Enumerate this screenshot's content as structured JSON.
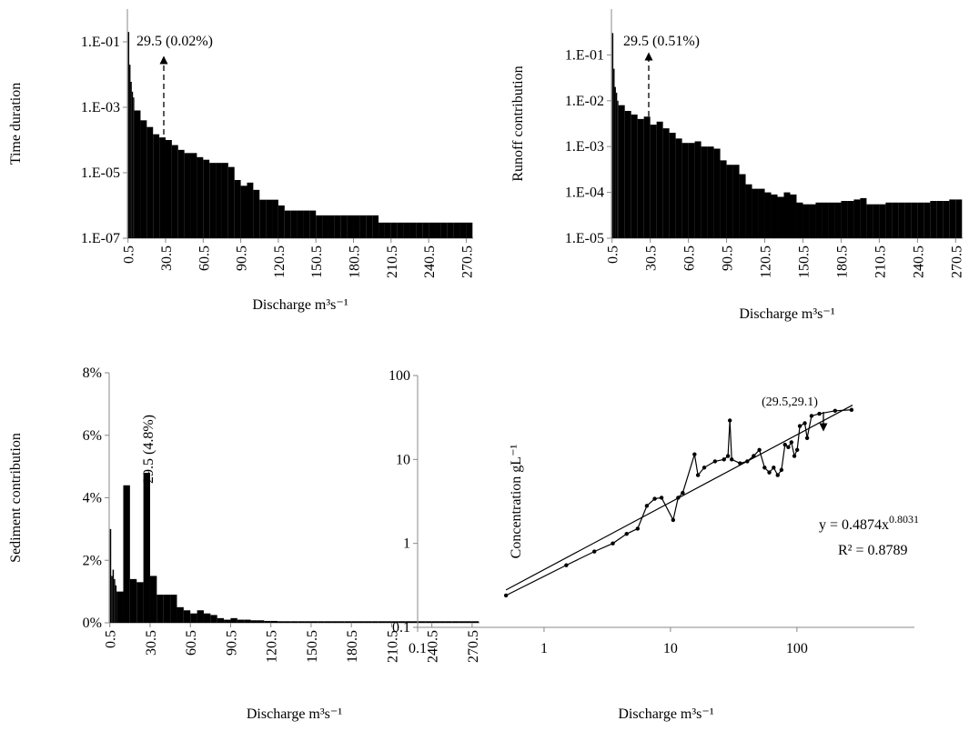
{
  "chart_data": [
    {
      "type": "histogram",
      "y_label": "Time duration",
      "x_label": "Discharge m³s⁻¹",
      "annotation": "29.5 (0.02%)",
      "log_y": true,
      "color": "#000000",
      "bins": [
        0.5,
        1.5,
        2.5,
        3.5,
        4.5,
        5.5,
        10.5,
        15.5,
        20.5,
        25.5,
        30.5,
        35.5,
        40.5,
        45.5,
        50.5,
        55.5,
        60.5,
        65.5,
        70.5,
        75.5,
        80.5,
        85.5,
        90.5,
        95.5,
        100.5,
        105.5,
        110.5,
        115.5,
        120.5,
        125.5,
        130.5,
        135.5,
        140.5,
        145.5,
        150.5,
        155.5,
        160.5,
        165.5,
        170.5,
        175.5,
        180.5,
        185.5,
        190.5,
        195.5,
        200.5,
        205.5,
        210.5,
        215.5,
        220.5,
        225.5,
        230.5,
        235.5,
        240.5,
        245.5,
        250.5,
        255.5,
        260.5,
        265.5,
        270.5,
        275.5
      ],
      "values": [
        0.2,
        0.02,
        0.006,
        0.003,
        0.002,
        0.0008,
        0.0004,
        0.00025,
        0.00015,
        0.00012,
        0.0001,
        7e-05,
        5e-05,
        4e-05,
        4e-05,
        3e-05,
        2.5e-05,
        2e-05,
        2e-05,
        2e-05,
        1.5e-05,
        6e-06,
        4e-06,
        5e-06,
        3e-06,
        1.5e-06,
        1.5e-06,
        1.5e-06,
        1e-06,
        7e-07,
        7e-07,
        7e-07,
        7e-07,
        7e-07,
        5e-07,
        5e-07,
        5e-07,
        5e-07,
        5e-07,
        5e-07,
        5e-07,
        5e-07,
        5e-07,
        5e-07,
        3e-07,
        3e-07,
        3e-07,
        3e-07,
        3e-07,
        3e-07,
        3e-07,
        3e-07,
        3e-07,
        3e-07,
        3e-07,
        3e-07,
        3e-07,
        3e-07,
        3e-07
      ],
      "xlim": [
        0,
        276
      ],
      "xticks": [
        0.5,
        30.5,
        60.5,
        90.5,
        120.5,
        150.5,
        180.5,
        210.5,
        240.5,
        270.5
      ],
      "ylim": [
        1e-07,
        1
      ],
      "yticks": [
        {
          "value": 1e-07,
          "label": "1.E-07"
        },
        {
          "value": 1e-05,
          "label": "1.E-05"
        },
        {
          "value": 0.001,
          "label": "1.E-03"
        },
        {
          "value": 0.1,
          "label": "1.E-01"
        }
      ]
    },
    {
      "type": "histogram",
      "y_label": "Runoff contribution",
      "x_label": "Discharge m³s⁻¹",
      "annotation": "29.5 (0.51%)",
      "log_y": true,
      "color": "#000000",
      "bins": [
        0.5,
        1.5,
        2.5,
        3.5,
        4.5,
        5.5,
        10.5,
        15.5,
        20.5,
        25.5,
        30.5,
        35.5,
        40.5,
        45.5,
        50.5,
        55.5,
        60.5,
        65.5,
        70.5,
        75.5,
        80.5,
        85.5,
        90.5,
        95.5,
        100.5,
        105.5,
        110.5,
        115.5,
        120.5,
        125.5,
        130.5,
        135.5,
        140.5,
        145.5,
        150.5,
        155.5,
        160.5,
        165.5,
        170.5,
        175.5,
        180.5,
        185.5,
        190.5,
        195.5,
        200.5,
        205.5,
        210.5,
        215.5,
        220.5,
        225.5,
        230.5,
        235.5,
        240.5,
        245.5,
        250.5,
        255.5,
        260.5,
        265.5,
        270.5,
        275.5
      ],
      "values": [
        0.3,
        0.05,
        0.02,
        0.015,
        0.01,
        0.008,
        0.006,
        0.005,
        0.004,
        0.0045,
        0.003,
        0.0035,
        0.0025,
        0.002,
        0.0015,
        0.0012,
        0.0012,
        0.0013,
        0.001,
        0.001,
        0.0009,
        0.0005,
        0.0004,
        0.0004,
        0.00025,
        0.00015,
        0.00012,
        0.00012,
        0.0001,
        9e-05,
        8e-05,
        0.0001,
        9e-05,
        6e-05,
        5.5e-05,
        5.5e-05,
        6e-05,
        6e-05,
        6e-05,
        6e-05,
        6.5e-05,
        6.5e-05,
        7e-05,
        7.5e-05,
        5.5e-05,
        5.5e-05,
        5.5e-05,
        6e-05,
        6e-05,
        6e-05,
        6e-05,
        6e-05,
        6e-05,
        6e-05,
        6.5e-05,
        6.5e-05,
        6.5e-05,
        7e-05,
        7e-05
      ],
      "xlim": [
        0,
        276
      ],
      "xticks": [
        0.5,
        30.5,
        60.5,
        90.5,
        120.5,
        150.5,
        180.5,
        210.5,
        240.5,
        270.5
      ],
      "ylim": [
        1e-05,
        1
      ],
      "yticks": [
        {
          "value": 1e-05,
          "label": "1.E-05"
        },
        {
          "value": 0.0001,
          "label": "1.E-04"
        },
        {
          "value": 0.001,
          "label": "1.E-03"
        },
        {
          "value": 0.01,
          "label": "1.E-02"
        },
        {
          "value": 0.1,
          "label": "1.E-01"
        }
      ]
    },
    {
      "type": "histogram",
      "y_label": "Sediment contribution",
      "x_label": "Discharge m³s⁻¹",
      "annotation": "29.5 (4.8%)",
      "log_y": false,
      "color": "#000000",
      "bins": [
        0.5,
        1.5,
        2.5,
        3.5,
        4.5,
        5.5,
        10.5,
        15.5,
        20.5,
        25.5,
        30.5,
        35.5,
        40.5,
        45.5,
        50.5,
        55.5,
        60.5,
        65.5,
        70.5,
        75.5,
        80.5,
        85.5,
        90.5,
        95.5,
        100.5,
        105.5,
        110.5,
        115.5,
        120.5,
        125.5,
        130.5,
        135.5,
        140.5,
        145.5,
        150.5,
        155.5,
        160.5,
        165.5,
        170.5,
        175.5,
        180.5,
        185.5,
        190.5,
        195.5,
        200.5,
        205.5,
        210.5,
        215.5,
        220.5,
        225.5,
        230.5,
        235.5,
        240.5,
        245.5,
        250.5,
        255.5,
        260.5,
        265.5,
        270.5,
        275.5
      ],
      "values": [
        3.0,
        1.5,
        1.7,
        1.4,
        1.2,
        1.0,
        4.4,
        1.4,
        1.3,
        4.8,
        1.5,
        0.9,
        0.9,
        0.9,
        0.5,
        0.4,
        0.3,
        0.4,
        0.3,
        0.25,
        0.15,
        0.1,
        0.15,
        0.1,
        0.1,
        0.08,
        0.08,
        0.06,
        0.06,
        0.05,
        0.05,
        0.05,
        0.05,
        0.05,
        0.05,
        0.05,
        0.05,
        0.05,
        0.05,
        0.05,
        0.05,
        0.05,
        0.05,
        0.05,
        0.05,
        0.05,
        0.05,
        0.05,
        0.05,
        0.05,
        0.05,
        0.05,
        0.05,
        0.05,
        0.05,
        0.05,
        0.05,
        0.05,
        0.05
      ],
      "xlim": [
        0,
        276
      ],
      "xticks": [
        0.5,
        30.5,
        60.5,
        90.5,
        120.5,
        150.5,
        180.5,
        210.5,
        240.5,
        270.5
      ],
      "ylim": [
        0,
        8
      ],
      "yticks": [
        {
          "value": 0,
          "label": "0%"
        },
        {
          "value": 2,
          "label": "2%"
        },
        {
          "value": 4,
          "label": "4%"
        },
        {
          "value": 6,
          "label": "6%"
        },
        {
          "value": 8,
          "label": "8%"
        }
      ]
    },
    {
      "type": "scatter",
      "y_label": "Concentration gL⁻¹",
      "x_label": "Discharge m³s⁻¹",
      "annotation": "(29.5,29.1)",
      "equation": {
        "base": "y = 0.4874x",
        "exponent": "0.8031"
      },
      "r_squared": "R² = 0.8789",
      "log_x": true,
      "log_y": true,
      "xlim": [
        0.1,
        850
      ],
      "xticks": [
        0.1,
        1,
        10,
        100
      ],
      "ylim": [
        0.1,
        100
      ],
      "yticks": [
        0.1,
        1,
        10,
        100
      ],
      "series": [
        {
          "color": "#000000",
          "markers": true,
          "x": [
            0.5,
            1.5,
            2.5,
            3.5,
            4.5,
            5.5,
            6.5,
            7.5,
            8.5,
            10.5,
            11.5,
            12.5,
            15.5,
            16.5,
            18.5,
            22.5,
            26.5,
            28.5,
            29.5,
            30.5,
            35.5,
            40.5,
            45.5,
            50.5,
            55.5,
            60.5,
            65.5,
            70.5,
            75.5,
            80.5,
            85.5,
            90.5,
            95.5,
            100.5,
            105.5,
            115.5,
            120.5,
            130.5,
            150.5,
            200.5,
            270.5
          ],
          "values": [
            0.24,
            0.55,
            0.8,
            1.0,
            1.3,
            1.5,
            2.8,
            3.4,
            3.5,
            1.9,
            3.5,
            4.0,
            11.5,
            6.5,
            8,
            9.5,
            10,
            11,
            29.1,
            10,
            9,
            9.5,
            11,
            13,
            8,
            7,
            8,
            6.5,
            7.5,
            15,
            14,
            16,
            11,
            13,
            25,
            27,
            18,
            33,
            35,
            38,
            39
          ]
        },
        {
          "color": "#000000",
          "markers": false,
          "x": [
            0.5,
            275.5
          ],
          "values": [
            0.279,
            44.4
          ]
        }
      ]
    }
  ]
}
